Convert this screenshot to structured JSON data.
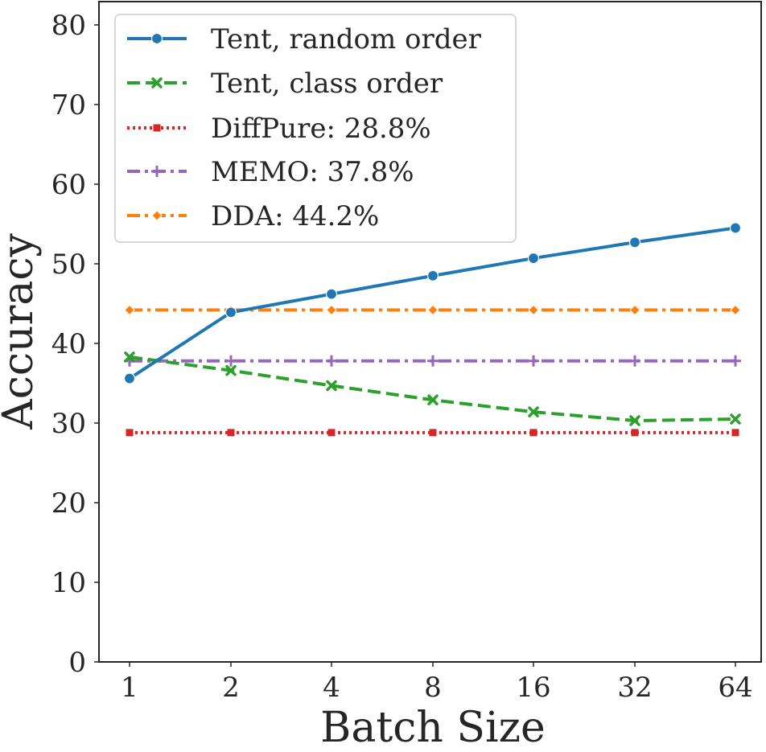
{
  "chart_data": {
    "type": "line",
    "title": "",
    "xlabel": "Batch Size",
    "ylabel": "Accuracy",
    "categories": [
      "1",
      "2",
      "4",
      "8",
      "16",
      "32",
      "64"
    ],
    "ylim": [
      0,
      80
    ],
    "yticks": [
      "0",
      "10",
      "20",
      "30",
      "40",
      "50",
      "60",
      "70",
      "80"
    ],
    "grid": false,
    "legend_position": "top-left",
    "series": [
      {
        "name": "Tent, random order",
        "values": [
          35.6,
          43.9,
          46.2,
          48.5,
          50.7,
          52.7,
          54.5
        ],
        "color": "#1f77b4",
        "dash": "solid",
        "marker": "circle"
      },
      {
        "name": "Tent, class order",
        "values": [
          38.3,
          36.6,
          34.7,
          32.9,
          31.4,
          30.3,
          30.5
        ],
        "color": "#2ca02c",
        "dash": "dashed",
        "marker": "x"
      },
      {
        "name": "DiffPure: 28.8%",
        "values": [
          28.8,
          28.8,
          28.8,
          28.8,
          28.8,
          28.8,
          28.8
        ],
        "color": "#d62728",
        "dash": "dotted",
        "marker": "square"
      },
      {
        "name": "MEMO: 37.8%",
        "values": [
          37.8,
          37.8,
          37.8,
          37.8,
          37.8,
          37.8,
          37.8
        ],
        "color": "#9467bd",
        "dash": "dashdot",
        "marker": "plus"
      },
      {
        "name": "DDA: 44.2%",
        "values": [
          44.2,
          44.2,
          44.2,
          44.2,
          44.2,
          44.2,
          44.2
        ],
        "color": "#ff7f0e",
        "dash": "dashdot",
        "marker": "diamond"
      }
    ]
  }
}
